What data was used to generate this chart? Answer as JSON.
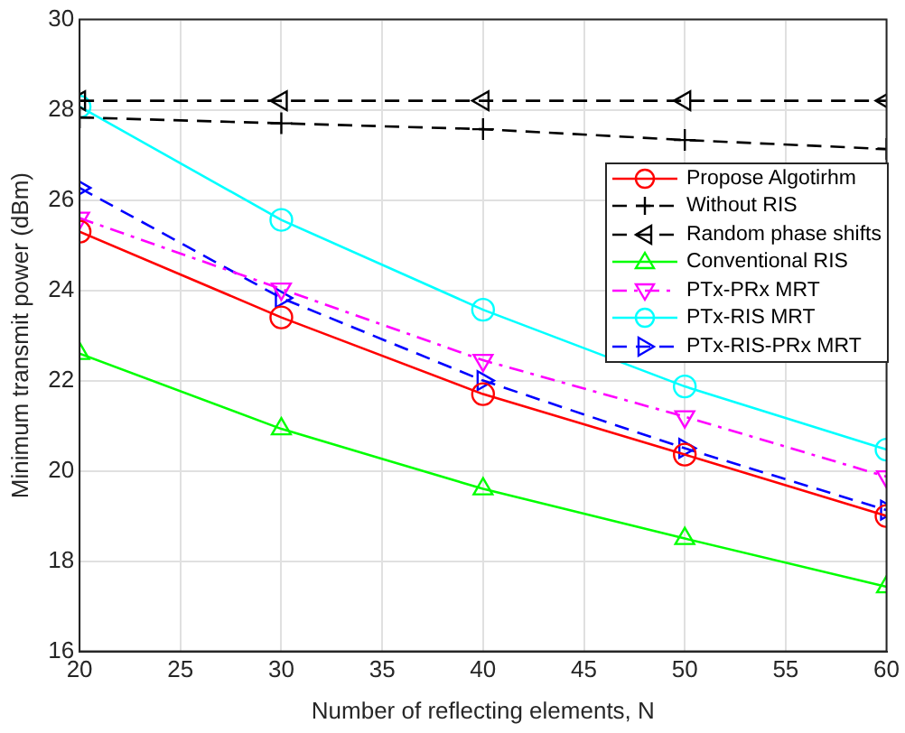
{
  "chart_data": {
    "type": "line",
    "xlabel": "Number of reflecting elements, N",
    "ylabel": "Minimum transmit power (dBm)",
    "x": [
      20,
      30,
      40,
      50,
      60
    ],
    "xlim": [
      20,
      60
    ],
    "xticks": [
      20,
      25,
      30,
      35,
      40,
      45,
      50,
      55,
      60
    ],
    "ylim": [
      16,
      30
    ],
    "yticks": [
      16,
      18,
      20,
      22,
      24,
      26,
      28,
      30
    ],
    "grid": true,
    "legend": "top right",
    "series": [
      {
        "name": "Propose Algotirhm",
        "color": "#ff0000",
        "marker": "circle",
        "line_style": "solid",
        "values": [
          25.3,
          23.4,
          21.7,
          20.36,
          19.0
        ]
      },
      {
        "name": "Without RIS",
        "color": "#000000",
        "marker": "cross",
        "line_style": "dashed",
        "values": [
          27.83,
          27.7,
          27.57,
          27.33,
          27.13
        ]
      },
      {
        "name": "Random phase shifts",
        "color": "#000000",
        "marker": "triangle-left",
        "line_style": "dashed",
        "values": [
          28.2,
          28.2,
          28.2,
          28.2,
          28.2
        ]
      },
      {
        "name": "Conventional RIS",
        "color": "#00ff00",
        "marker": "triangle",
        "line_style": "solid",
        "values": [
          22.6,
          20.93,
          19.6,
          18.5,
          17.43
        ]
      },
      {
        "name": "PTx-PRx MRT",
        "color": "#ff00ff",
        "marker": "triangle-down",
        "line_style": "dashdot",
        "values": [
          25.6,
          24.03,
          22.45,
          21.2,
          19.87
        ]
      },
      {
        "name": "PTx-RIS MRT",
        "color": "#00ffff",
        "marker": "circle",
        "line_style": "solid",
        "values": [
          28.07,
          25.56,
          23.57,
          21.87,
          20.47
        ]
      },
      {
        "name": "PTx-RIS-PRx MRT",
        "color": "#0000ff",
        "marker": "triangle-right",
        "line_style": "dashed",
        "values": [
          26.27,
          23.83,
          22.0,
          20.5,
          19.13
        ]
      }
    ]
  }
}
